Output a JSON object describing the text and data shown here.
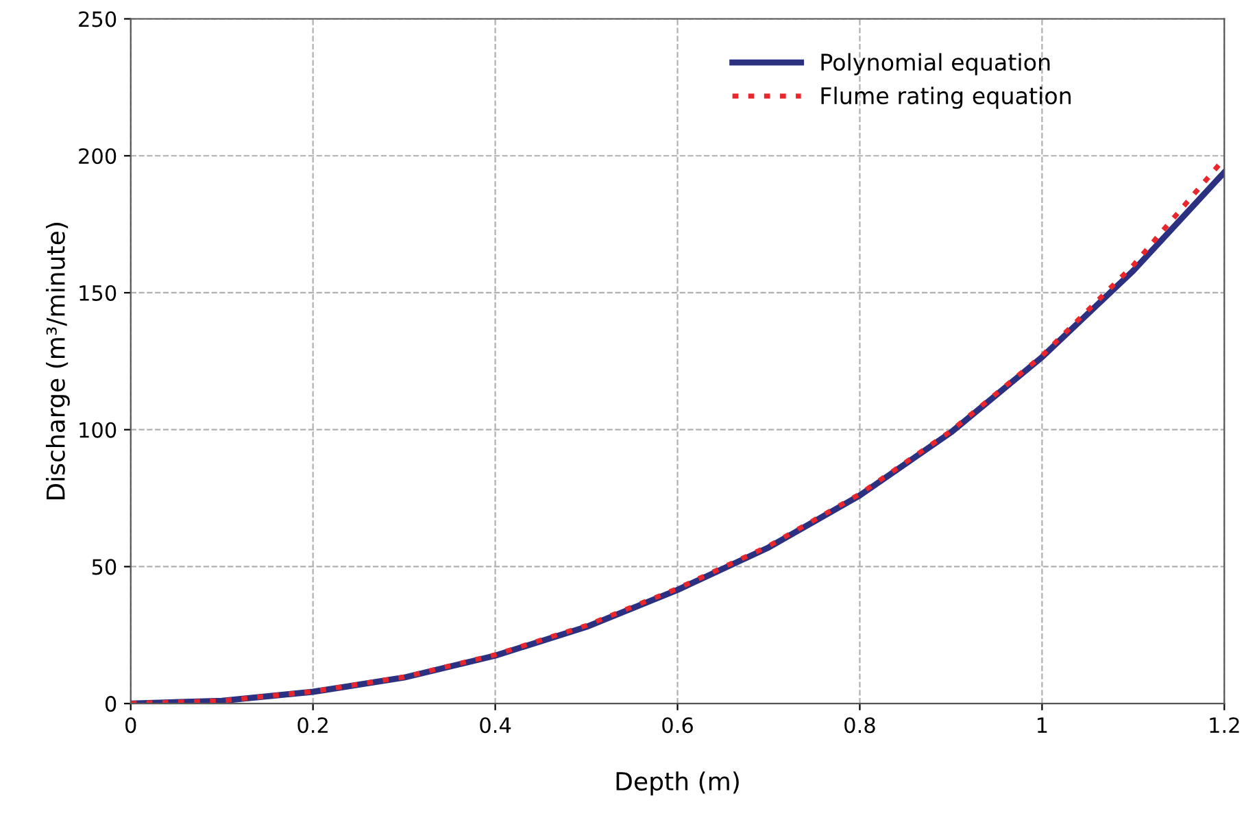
{
  "chart_data": {
    "type": "line",
    "xlabel": "Depth (m)",
    "ylabel": "Discharge (m³/minute)",
    "x": [
      0,
      0.1,
      0.2,
      0.3,
      0.4,
      0.5,
      0.6,
      0.7,
      0.8,
      0.9,
      1.0,
      1.1,
      1.2
    ],
    "series": [
      {
        "name": "Polynomial equation",
        "color": "#2b3080",
        "line_style": "solid",
        "values": [
          0,
          1.0,
          4.3,
          9.5,
          17.5,
          28,
          41.5,
          57,
          76,
          99,
          126.5,
          158,
          194
        ]
      },
      {
        "name": "Flume rating equation",
        "color": "#e8262b",
        "line_style": "dotted",
        "values": [
          0,
          1.0,
          4.4,
          9.7,
          17.8,
          28.5,
          42,
          57.5,
          76.5,
          99.5,
          127,
          160,
          199
        ]
      }
    ],
    "xlim": [
      0,
      1.2
    ],
    "ylim": [
      0,
      250
    ],
    "xticks": [
      0,
      0.2,
      0.4,
      0.6,
      0.8,
      1,
      1.2
    ],
    "yticks": [
      0,
      50,
      100,
      150,
      200,
      250
    ],
    "grid": true,
    "legend": "top right"
  }
}
